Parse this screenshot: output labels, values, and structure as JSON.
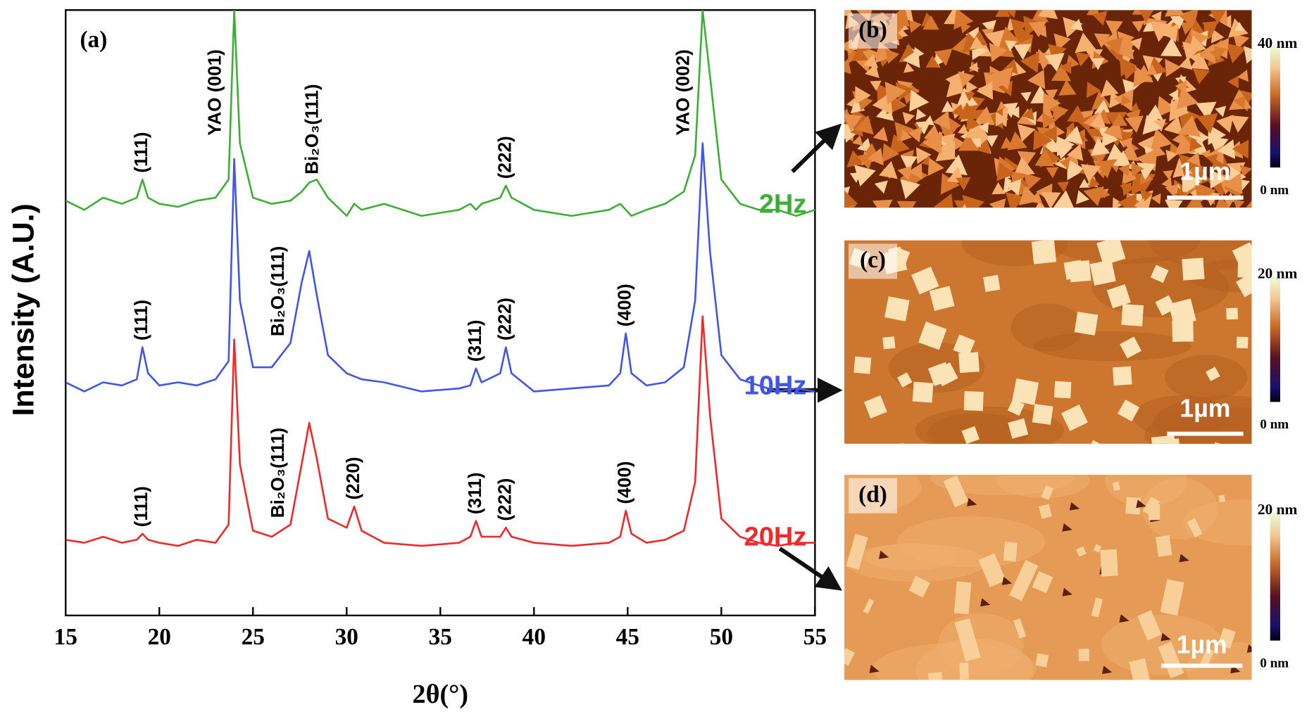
{
  "chart_data": {
    "type": "line",
    "panel_label": "(a)",
    "xlabel": "2θ(°)",
    "ylabel": "Intensity (A.U.)",
    "xlim": [
      15,
      55
    ],
    "xticks": [
      15,
      20,
      25,
      30,
      35,
      40,
      45,
      50,
      55
    ],
    "ylim": [
      0,
      100
    ],
    "x": [
      15,
      16,
      17,
      18,
      18.8,
      19.1,
      19.4,
      20,
      21,
      22,
      23,
      23.7,
      24,
      24.3,
      25,
      26,
      27,
      27.6,
      28,
      28.4,
      29,
      30,
      30.4,
      30.8,
      32,
      34,
      36,
      36.6,
      36.9,
      37.2,
      38.2,
      38.5,
      38.8,
      40,
      42,
      44,
      44.6,
      44.9,
      45.2,
      46,
      47,
      48,
      48.6,
      49,
      49.4,
      50,
      51,
      52,
      53,
      54,
      55
    ],
    "series": [
      {
        "name": "2Hz",
        "color": "#3cb034",
        "values": [
          68.5,
          67,
          69,
          68,
          69,
          72,
          69,
          68,
          67.5,
          68.5,
          69,
          72,
          100,
          78,
          69,
          68,
          68.5,
          70,
          71.5,
          72,
          69,
          66,
          68,
          67,
          68,
          66,
          67,
          68,
          67,
          68,
          69,
          71,
          69,
          67,
          66,
          67,
          68,
          67,
          66,
          67,
          68,
          70,
          76,
          100,
          89,
          72,
          68,
          67,
          67,
          66,
          67
        ],
        "annotations": [
          {
            "text": "(111)",
            "x": 19.1
          },
          {
            "text": "YAO (001)",
            "x": 24
          },
          {
            "text": "Bi₂O₃(111)",
            "x": 28.2
          },
          {
            "text": "(222)",
            "x": 38.5
          },
          {
            "text": "YAO (002)",
            "x": 49
          }
        ]
      },
      {
        "name": "10Hz",
        "color": "#3f56e6",
        "values": [
          38.5,
          37,
          38.5,
          38,
          39,
          44.3,
          40,
          38,
          38.5,
          38,
          39,
          42,
          75.4,
          52,
          41,
          41,
          45,
          55,
          60.2,
          53,
          43,
          40,
          39.5,
          39,
          38.5,
          37,
          37.5,
          38,
          40.8,
          38.5,
          40,
          44.3,
          40,
          37,
          37.5,
          38,
          40,
          46.6,
          40,
          38,
          38.5,
          41,
          52,
          78,
          60,
          43,
          39,
          38,
          37,
          37.5,
          37
        ],
        "annotations": [
          {
            "text": "(111)",
            "x": 19.1
          },
          {
            "text": "Bi₂O₃(111)",
            "x": 28
          },
          {
            "text": "(311)",
            "x": 36.9
          },
          {
            "text": "(222)",
            "x": 38.5
          },
          {
            "text": "(400)",
            "x": 44.9
          }
        ]
      },
      {
        "name": "20Hz",
        "color": "#ee2a2a",
        "values": [
          12.5,
          12,
          13,
          12,
          12.5,
          13.5,
          12.5,
          12,
          11.5,
          12.5,
          12,
          15,
          45.6,
          25,
          14,
          13,
          15,
          25,
          31.8,
          26,
          16,
          14.5,
          18,
          14,
          12,
          11.5,
          12,
          13,
          15.6,
          13,
          13,
          14.5,
          13,
          12,
          11.5,
          12,
          13,
          17.3,
          13.5,
          12,
          12.5,
          14,
          22,
          49.4,
          33,
          16,
          13,
          12,
          11.5,
          12,
          12
        ],
        "annotations": [
          {
            "text": "(111)",
            "x": 19.1
          },
          {
            "text": "Bi₂O₃(111)",
            "x": 28
          },
          {
            "text": "(220)",
            "x": 30.4
          },
          {
            "text": "(311)",
            "x": 36.9
          },
          {
            "text": "(222)",
            "x": 38.5
          },
          {
            "text": "(400)",
            "x": 44.9
          }
        ]
      }
    ]
  },
  "afm_panels": [
    {
      "label": "(b)",
      "scale_bar": "1µm",
      "colorbar_max": "40 nm",
      "colorbar_min": "0 nm"
    },
    {
      "label": "(c)",
      "scale_bar": "1µm",
      "colorbar_max": "20 nm",
      "colorbar_min": "0 nm"
    },
    {
      "label": "(d)",
      "scale_bar": "1µm",
      "colorbar_max": "20 nm",
      "colorbar_min": "0 nm"
    }
  ]
}
